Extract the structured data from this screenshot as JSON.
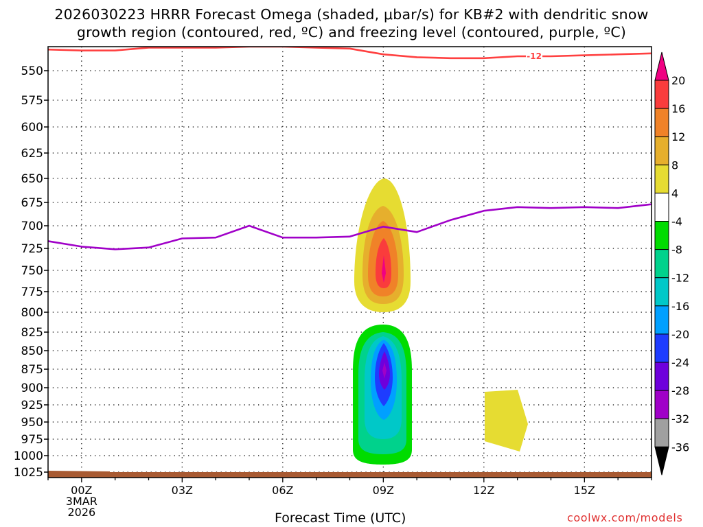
{
  "title_line1": "2026030223 HRRR Forecast Omega (shaded, μbar/s) for KB#2 with dendritic snow",
  "title_line2": "growth region (contoured, red, ºC) and freezing level (contoured, purple, ºC)",
  "credit": "coolwx.com/models",
  "chart_data": {
    "type": "time-height contour (shaded omega)",
    "xlabel": "Forecast Time (UTC)",
    "x_ticks": [
      "00Z",
      "03Z",
      "06Z",
      "09Z",
      "12Z",
      "15Z"
    ],
    "x_tick_hours": [
      0,
      3,
      6,
      9,
      12,
      15
    ],
    "x_date_label": [
      "3MAR",
      "2026"
    ],
    "xlim_hours": [
      -1,
      17
    ],
    "y_ticks": [
      550,
      575,
      600,
      625,
      650,
      675,
      700,
      725,
      750,
      775,
      800,
      825,
      850,
      875,
      900,
      925,
      950,
      975,
      1000,
      1025
    ],
    "ylim_hPa": [
      525,
      1030
    ],
    "grid": true,
    "colorbar": {
      "levels": [
        -36,
        -32,
        -28,
        -24,
        -20,
        -16,
        -12,
        -8,
        -4,
        4,
        8,
        12,
        16,
        20
      ],
      "colors": [
        "#000000",
        "#a0a0a0",
        "#a000c8",
        "#6e00dc",
        "#1e3cff",
        "#00a0ff",
        "#00c8c8",
        "#00d28c",
        "#00dc00",
        "#ffffff",
        "#e6dc32",
        "#e6af2d",
        "#f08228",
        "#fa3c3c",
        "#f00082"
      ]
    },
    "series": [
      {
        "name": "dendritic snow growth region",
        "contour_label": "-12",
        "color": "#ff4040",
        "hours": [
          -1,
          0,
          1,
          2,
          3,
          4,
          5,
          6,
          7,
          8,
          9,
          10,
          11,
          12,
          13,
          14,
          15,
          16,
          17
        ],
        "pressure": [
          528,
          529,
          529,
          526,
          526,
          526,
          525,
          525,
          526,
          527,
          533,
          536,
          537,
          537,
          535,
          535,
          534,
          533,
          532
        ]
      },
      {
        "name": "freezing level",
        "contour_label": "",
        "color": "#a000c8",
        "hours": [
          -1,
          0,
          1,
          2,
          3,
          4,
          5,
          6,
          7,
          8,
          9,
          10,
          11,
          12,
          13,
          14,
          15,
          16,
          17
        ],
        "pressure": [
          717,
          723,
          726,
          724,
          714,
          713,
          700,
          713,
          713,
          712,
          701,
          707,
          694,
          684,
          680,
          681,
          680,
          681,
          677
        ]
      }
    ],
    "shaded_regions": [
      {
        "name": "rising motion cell",
        "value_range": [
          -32,
          -4
        ],
        "hours": [
          8.0,
          9.8
        ],
        "pressure": [
          818,
          1003
        ],
        "peak_value": -28,
        "peak_pressure": 875
      },
      {
        "name": "sinking motion cell",
        "value_range": [
          4,
          20
        ],
        "hours": [
          8.2,
          9.7
        ],
        "pressure": [
          650,
          800
        ],
        "peak_value": 20,
        "peak_pressure": 750
      },
      {
        "name": "weak sinking cell",
        "value_range": [
          4,
          8
        ],
        "hours": [
          12.0,
          13.3
        ],
        "pressure": [
          902,
          990
        ]
      }
    ],
    "surface_shading": {
      "color": "#a85a32",
      "pressure_top": 1027
    }
  }
}
